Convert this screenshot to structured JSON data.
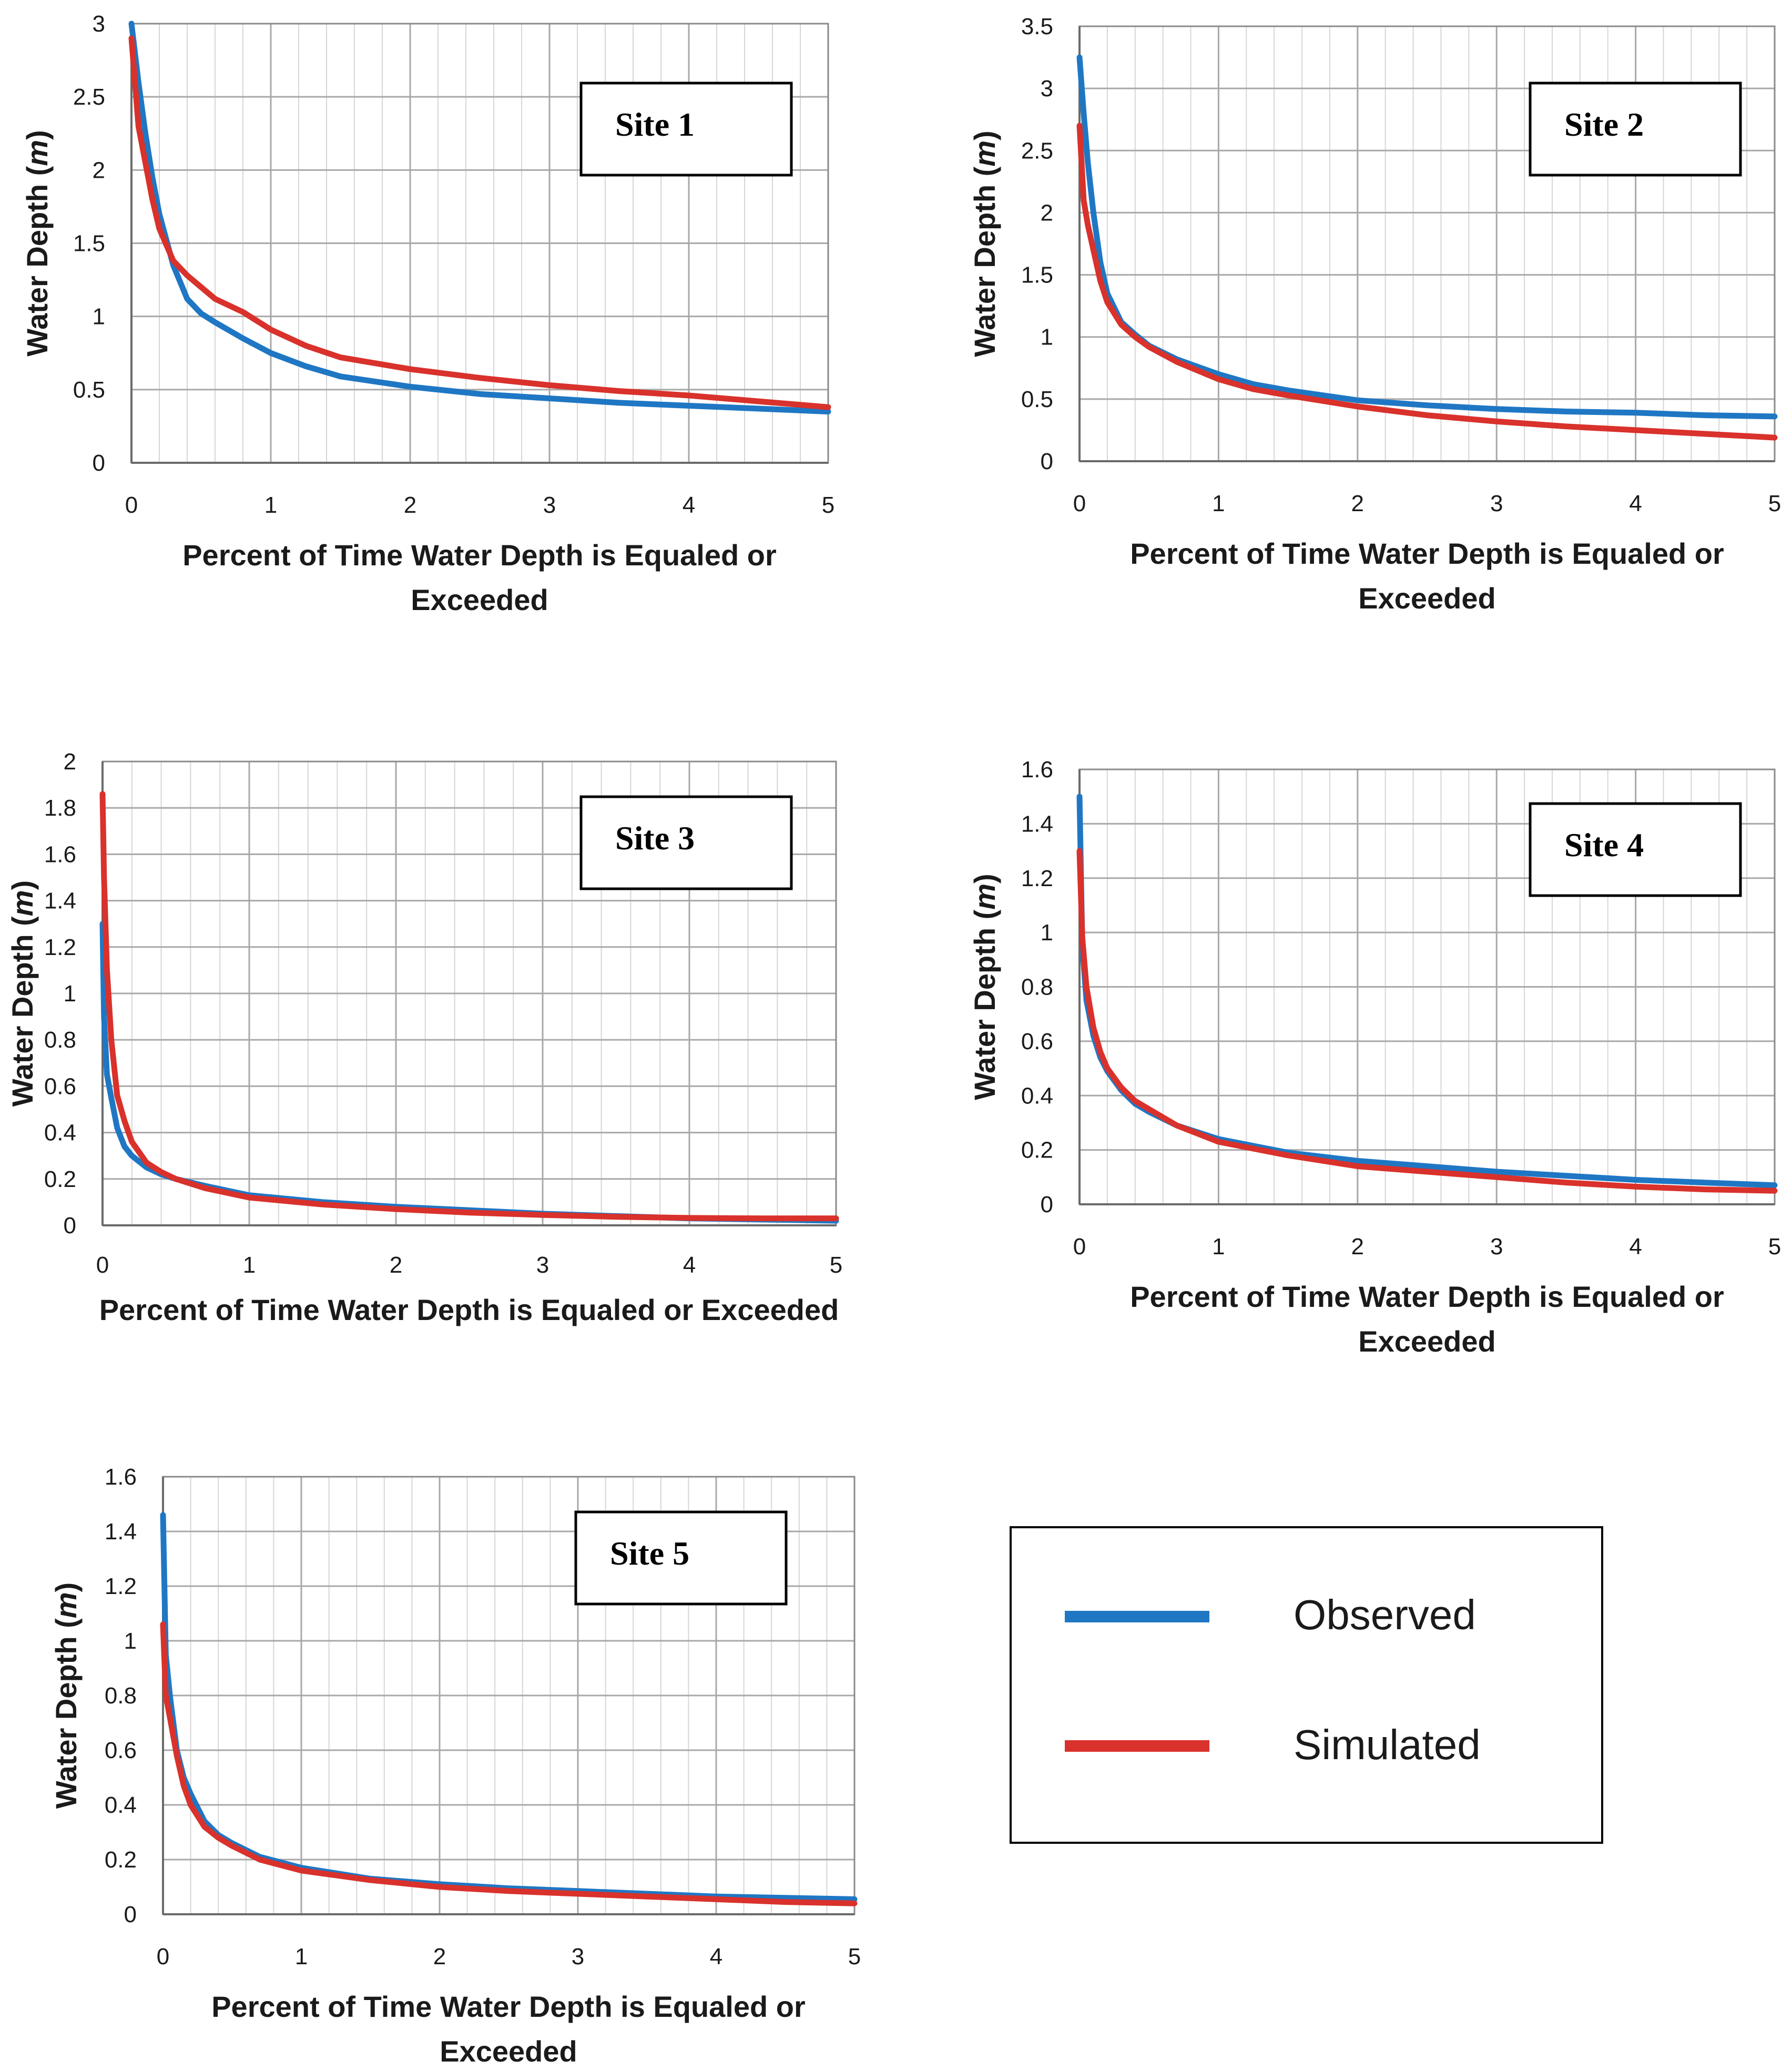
{
  "series_colors": {
    "Observed": "#1f77c4",
    "Simulated": "#d9312b"
  },
  "legend": {
    "observed": "Observed",
    "simulated": "Simulated"
  },
  "chart_data": [
    {
      "type": "line",
      "label": "Site 1",
      "xlabel": [
        "Percent of Time Water Depth is Equaled or",
        "Exceeded"
      ],
      "ylabel": [
        "Water Depth (",
        "m",
        ")"
      ],
      "xlim": [
        0,
        5
      ],
      "ylim": [
        0,
        3
      ],
      "xticks": [
        "0",
        "1",
        "2",
        "3",
        "4",
        "5"
      ],
      "yticks": [
        "0",
        "0.5",
        "1",
        "1.5",
        "2",
        "2.5",
        "3"
      ],
      "grid": true,
      "series": [
        {
          "name": "Observed",
          "x": [
            0,
            0.05,
            0.1,
            0.15,
            0.2,
            0.3,
            0.4,
            0.5,
            0.6,
            0.8,
            1,
            1.25,
            1.5,
            2,
            2.5,
            3,
            3.5,
            4,
            4.5,
            5
          ],
          "y": [
            3.0,
            2.6,
            2.25,
            1.95,
            1.7,
            1.35,
            1.12,
            1.02,
            0.96,
            0.85,
            0.75,
            0.66,
            0.59,
            0.52,
            0.47,
            0.44,
            0.41,
            0.39,
            0.37,
            0.35
          ]
        },
        {
          "name": "Simulated",
          "x": [
            0,
            0.05,
            0.1,
            0.15,
            0.2,
            0.3,
            0.4,
            0.5,
            0.6,
            0.8,
            1,
            1.25,
            1.5,
            2,
            2.5,
            3,
            3.5,
            4,
            4.5,
            5
          ],
          "y": [
            2.9,
            2.3,
            2.05,
            1.8,
            1.6,
            1.38,
            1.28,
            1.2,
            1.12,
            1.03,
            0.91,
            0.8,
            0.72,
            0.64,
            0.58,
            0.53,
            0.49,
            0.46,
            0.42,
            0.38
          ]
        }
      ]
    },
    {
      "type": "line",
      "label": "Site 2",
      "xlabel": [
        "Percent of Time Water Depth is Equaled or",
        "Exceeded"
      ],
      "ylabel": [
        "Water Depth (",
        "m",
        ")"
      ],
      "xlim": [
        0,
        5
      ],
      "ylim": [
        0,
        3.5
      ],
      "xticks": [
        "0",
        "1",
        "2",
        "3",
        "4",
        "5"
      ],
      "yticks": [
        "0",
        "0.5",
        "1",
        "1.5",
        "2",
        "2.5",
        "3",
        "3.5"
      ],
      "grid": true,
      "series": [
        {
          "name": "Observed",
          "x": [
            0,
            0.03,
            0.06,
            0.1,
            0.15,
            0.2,
            0.3,
            0.4,
            0.5,
            0.7,
            1,
            1.25,
            1.5,
            2,
            2.5,
            3,
            3.5,
            4,
            4.5,
            5
          ],
          "y": [
            3.25,
            2.8,
            2.4,
            2.0,
            1.6,
            1.35,
            1.12,
            1.02,
            0.93,
            0.82,
            0.7,
            0.62,
            0.57,
            0.49,
            0.45,
            0.42,
            0.4,
            0.39,
            0.37,
            0.36
          ]
        },
        {
          "name": "Simulated",
          "x": [
            0,
            0.03,
            0.06,
            0.1,
            0.15,
            0.2,
            0.3,
            0.4,
            0.5,
            0.7,
            1,
            1.25,
            1.5,
            2,
            2.5,
            3,
            3.5,
            4,
            4.5,
            5
          ],
          "y": [
            2.7,
            2.1,
            1.9,
            1.7,
            1.45,
            1.28,
            1.1,
            1.0,
            0.92,
            0.8,
            0.66,
            0.58,
            0.53,
            0.44,
            0.37,
            0.32,
            0.28,
            0.25,
            0.22,
            0.19
          ]
        }
      ]
    },
    {
      "type": "line",
      "label": "Site 3",
      "xlabel": [
        "Percent of Time Water Depth is Equaled or Exceeded"
      ],
      "ylabel": [
        "Water Depth (",
        "m",
        ")"
      ],
      "xlim": [
        0,
        5
      ],
      "ylim": [
        0,
        2
      ],
      "xticks": [
        "0",
        "1",
        "2",
        "3",
        "4",
        "5"
      ],
      "yticks": [
        "0",
        "0.2",
        "0.4",
        "0.6",
        "0.8",
        "1",
        "1.2",
        "1.4",
        "1.6",
        "1.8",
        "2"
      ],
      "grid": true,
      "series": [
        {
          "name": "Observed",
          "x": [
            0,
            0.01,
            0.03,
            0.06,
            0.1,
            0.15,
            0.2,
            0.3,
            0.4,
            0.5,
            0.7,
            1,
            1.5,
            2,
            2.5,
            3,
            3.5,
            4,
            4.5,
            5
          ],
          "y": [
            1.3,
            0.9,
            0.65,
            0.55,
            0.42,
            0.34,
            0.3,
            0.25,
            0.22,
            0.2,
            0.17,
            0.13,
            0.1,
            0.08,
            0.065,
            0.05,
            0.04,
            0.03,
            0.025,
            0.02
          ]
        },
        {
          "name": "Simulated",
          "x": [
            0,
            0.01,
            0.03,
            0.06,
            0.1,
            0.15,
            0.2,
            0.3,
            0.4,
            0.5,
            0.7,
            1,
            1.5,
            2,
            2.5,
            3,
            3.5,
            4,
            4.5,
            5
          ],
          "y": [
            1.86,
            1.5,
            1.1,
            0.8,
            0.56,
            0.45,
            0.36,
            0.27,
            0.23,
            0.2,
            0.16,
            0.12,
            0.09,
            0.07,
            0.055,
            0.045,
            0.037,
            0.032,
            0.03,
            0.03
          ]
        }
      ]
    },
    {
      "type": "line",
      "label": "Site 4",
      "xlabel": [
        "Percent of Time Water Depth is Equaled or",
        "Exceeded"
      ],
      "ylabel": [
        "Water Depth (",
        "m",
        ")"
      ],
      "xlim": [
        0,
        5
      ],
      "ylim": [
        0,
        1.6
      ],
      "xticks": [
        "0",
        "1",
        "2",
        "3",
        "4",
        "5"
      ],
      "yticks": [
        "0",
        "0.2",
        "0.4",
        "0.6",
        "0.8",
        "1",
        "1.2",
        "1.4",
        "1.6"
      ],
      "grid": true,
      "series": [
        {
          "name": "Observed",
          "x": [
            0,
            0.02,
            0.05,
            0.1,
            0.15,
            0.2,
            0.3,
            0.4,
            0.5,
            0.7,
            1,
            1.5,
            2,
            2.5,
            3,
            3.5,
            4,
            4.5,
            5
          ],
          "y": [
            1.5,
            0.95,
            0.75,
            0.62,
            0.54,
            0.49,
            0.42,
            0.37,
            0.34,
            0.29,
            0.24,
            0.19,
            0.16,
            0.14,
            0.12,
            0.105,
            0.09,
            0.08,
            0.07
          ]
        },
        {
          "name": "Simulated",
          "x": [
            0,
            0.02,
            0.05,
            0.1,
            0.15,
            0.2,
            0.3,
            0.4,
            0.5,
            0.7,
            1,
            1.5,
            2,
            2.5,
            3,
            3.5,
            4,
            4.5,
            5
          ],
          "y": [
            1.3,
            0.98,
            0.8,
            0.65,
            0.56,
            0.5,
            0.43,
            0.38,
            0.35,
            0.29,
            0.23,
            0.18,
            0.14,
            0.12,
            0.1,
            0.08,
            0.065,
            0.055,
            0.05
          ]
        }
      ]
    },
    {
      "type": "line",
      "label": "Site 5",
      "xlabel": [
        "Percent of Time Water Depth is Equaled or",
        "Exceeded"
      ],
      "ylabel": [
        "Water Depth (",
        "m",
        ")"
      ],
      "xlim": [
        0,
        5
      ],
      "ylim": [
        0,
        1.6
      ],
      "xticks": [
        "0",
        "1",
        "2",
        "3",
        "4",
        "5"
      ],
      "yticks": [
        "0",
        "0.2",
        "0.4",
        "0.6",
        "0.8",
        "1",
        "1.2",
        "1.4",
        "1.6"
      ],
      "grid": true,
      "series": [
        {
          "name": "Observed",
          "x": [
            0,
            0.02,
            0.05,
            0.1,
            0.15,
            0.2,
            0.3,
            0.4,
            0.5,
            0.7,
            1,
            1.5,
            2,
            2.5,
            3,
            3.5,
            4,
            4.5,
            5
          ],
          "y": [
            1.46,
            0.95,
            0.8,
            0.6,
            0.5,
            0.44,
            0.34,
            0.29,
            0.26,
            0.21,
            0.17,
            0.13,
            0.11,
            0.095,
            0.085,
            0.075,
            0.065,
            0.06,
            0.055
          ]
        },
        {
          "name": "Simulated",
          "x": [
            0,
            0.02,
            0.05,
            0.1,
            0.15,
            0.2,
            0.3,
            0.4,
            0.5,
            0.7,
            1,
            1.5,
            2,
            2.5,
            3,
            3.5,
            4,
            4.5,
            5
          ],
          "y": [
            1.06,
            0.8,
            0.72,
            0.58,
            0.47,
            0.4,
            0.32,
            0.28,
            0.25,
            0.2,
            0.16,
            0.125,
            0.1,
            0.085,
            0.075,
            0.065,
            0.055,
            0.045,
            0.04
          ]
        }
      ]
    }
  ]
}
